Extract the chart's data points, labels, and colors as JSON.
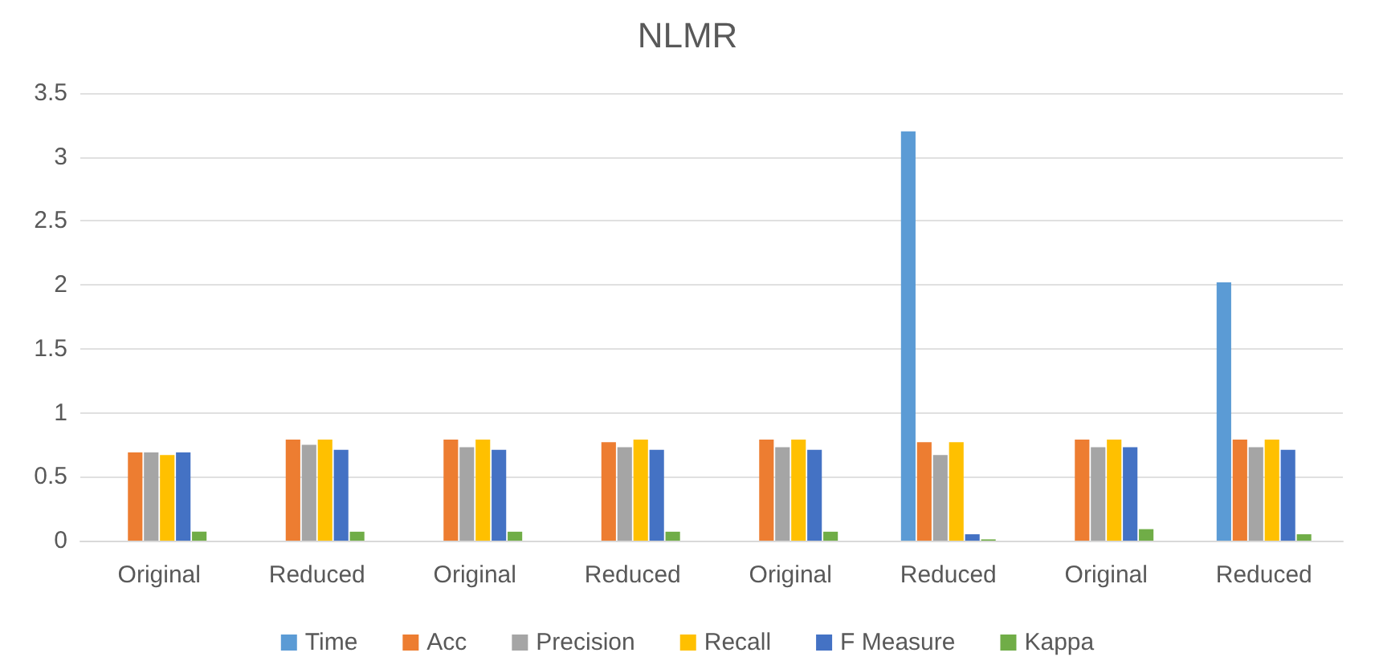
{
  "chart_data": {
    "type": "bar",
    "title": "NLMR",
    "categories": [
      "Original",
      "Reduced",
      "Original",
      "Reduced",
      "Original",
      "Reduced",
      "Original",
      "Reduced"
    ],
    "series": [
      {
        "name": "Time",
        "color": "#5b9bd5",
        "values": [
          0,
          0,
          0,
          0,
          0,
          3.2,
          0,
          2.02
        ]
      },
      {
        "name": "Acc",
        "color": "#ed7d31",
        "values": [
          0.69,
          0.79,
          0.79,
          0.77,
          0.79,
          0.77,
          0.79,
          0.79
        ]
      },
      {
        "name": "Precision",
        "color": "#a5a5a5",
        "values": [
          0.69,
          0.75,
          0.73,
          0.73,
          0.73,
          0.67,
          0.73,
          0.73
        ]
      },
      {
        "name": "Recall",
        "color": "#ffc000",
        "values": [
          0.67,
          0.79,
          0.79,
          0.79,
          0.79,
          0.77,
          0.79,
          0.79
        ]
      },
      {
        "name": "F Measure",
        "color": "#4472c4",
        "values": [
          0.69,
          0.71,
          0.71,
          0.71,
          0.71,
          0.05,
          0.73,
          0.71
        ]
      },
      {
        "name": "Kappa",
        "color": "#70ad47",
        "values": [
          0.07,
          0.07,
          0.07,
          0.07,
          0.07,
          0.01,
          0.09,
          0.05
        ]
      }
    ],
    "ylim": [
      0,
      3.5
    ],
    "yticks": [
      0,
      0.5,
      1,
      1.5,
      2,
      2.5,
      3,
      3.5
    ],
    "grid": "y",
    "legend": "bottom"
  }
}
